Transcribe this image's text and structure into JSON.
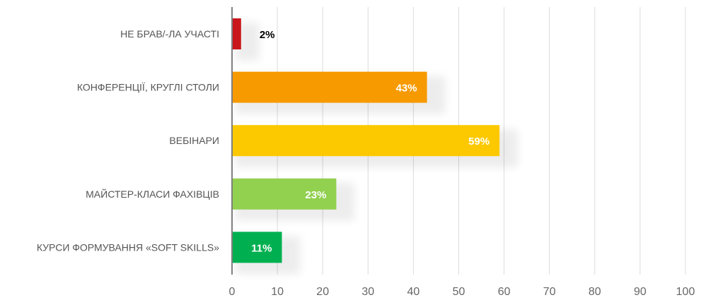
{
  "chart_data": {
    "type": "bar",
    "orientation": "horizontal",
    "categories": [
      "НЕ БРАВ/-ЛА УЧАСТІ",
      "КОНФЕРЕНЦІЇ, КРУГЛІ СТОЛИ",
      "ВЕБІНАРИ",
      "МАЙСТЕР-КЛАСИ ФАХІВЦІВ",
      "КУРСИ ФОРМУВАННЯ «SOFT SKILLS»"
    ],
    "values": [
      2,
      43,
      59,
      23,
      11
    ],
    "data_labels": [
      "2%",
      "43%",
      "59%",
      "23%",
      "11%"
    ],
    "colors": [
      "#c8181b",
      "#f79a00",
      "#fcc900",
      "#92d050",
      "#00b050"
    ],
    "label_colors": [
      "#000000",
      "#ffffff",
      "#ffffff",
      "#ffffff",
      "#ffffff"
    ],
    "x_ticks": [
      "0",
      "10",
      "20",
      "30",
      "40",
      "50",
      "60",
      "70",
      "80",
      "90",
      "100"
    ],
    "xlim": [
      0,
      100
    ],
    "grid": true,
    "legend": "none",
    "title": "",
    "xlabel": "",
    "ylabel": ""
  }
}
